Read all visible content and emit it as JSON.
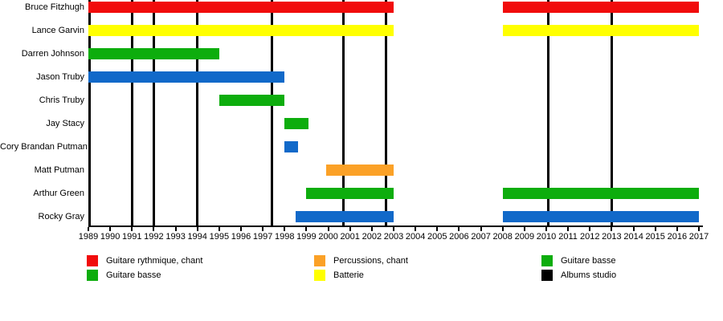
{
  "chart_data": {
    "type": "gantt-timeline",
    "x_axis": {
      "start": 1989,
      "end": 2017,
      "ticks": [
        1989,
        1990,
        1991,
        1992,
        1993,
        1994,
        1995,
        1996,
        1997,
        1998,
        1999,
        2000,
        2001,
        2002,
        2003,
        2004,
        2005,
        2006,
        2007,
        2008,
        2009,
        2010,
        2011,
        2012,
        2013,
        2014,
        2015,
        2016,
        2017
      ]
    },
    "members": [
      {
        "name": "Bruce Fitzhugh",
        "color": "#F10C0C",
        "spans": [
          [
            1989,
            2003
          ],
          [
            2008,
            2017
          ]
        ]
      },
      {
        "name": "Lance Garvin",
        "color": "#FFFF00",
        "spans": [
          [
            1989,
            2003
          ],
          [
            2008,
            2017
          ]
        ]
      },
      {
        "name": "Darren Johnson",
        "color": "#0DAD0D",
        "spans": [
          [
            1989,
            1995
          ]
        ]
      },
      {
        "name": "Jason Truby",
        "color": "#1169C9",
        "spans": [
          [
            1989,
            1998
          ]
        ]
      },
      {
        "name": "Chris Truby",
        "color": "#0DAD0D",
        "spans": [
          [
            1995,
            1998
          ]
        ]
      },
      {
        "name": "Jay Stacy",
        "color": "#0DAD0D",
        "spans": [
          [
            1998,
            1999.1
          ]
        ]
      },
      {
        "name": "Cory Brandan Putman",
        "color": "#1169C9",
        "spans": [
          [
            1998,
            1998.6
          ]
        ]
      },
      {
        "name": "Matt Putman",
        "color": "#FBA127",
        "spans": [
          [
            1999.9,
            2003
          ]
        ]
      },
      {
        "name": "Arthur Green",
        "color": "#0DAD0D",
        "spans": [
          [
            1999,
            2003
          ],
          [
            2008,
            2017
          ]
        ]
      },
      {
        "name": "Rocky Gray",
        "color": "#1169C9",
        "spans": [
          [
            1998.5,
            2003
          ],
          [
            2008,
            2017
          ]
        ]
      }
    ],
    "album_markers": {
      "label": "Albums studio",
      "years": [
        1991,
        1992,
        1994,
        1997.4,
        2000.7,
        2002.65,
        2010.1,
        2013
      ]
    },
    "legend": {
      "columns": [
        [
          {
            "color": "#F10C0C",
            "label": "Guitare rythmique, chant"
          },
          {
            "color": "#0DAD0D",
            "label": "Guitare basse"
          }
        ],
        [
          {
            "color": "#FBA127",
            "label": "Percussions, chant"
          },
          {
            "color": "#FFFF00",
            "label": "Batterie"
          }
        ],
        [
          {
            "color": "#0DAD0D",
            "label": "Guitare basse"
          },
          {
            "color": "#000000",
            "label": "Albums studio"
          }
        ]
      ]
    }
  }
}
